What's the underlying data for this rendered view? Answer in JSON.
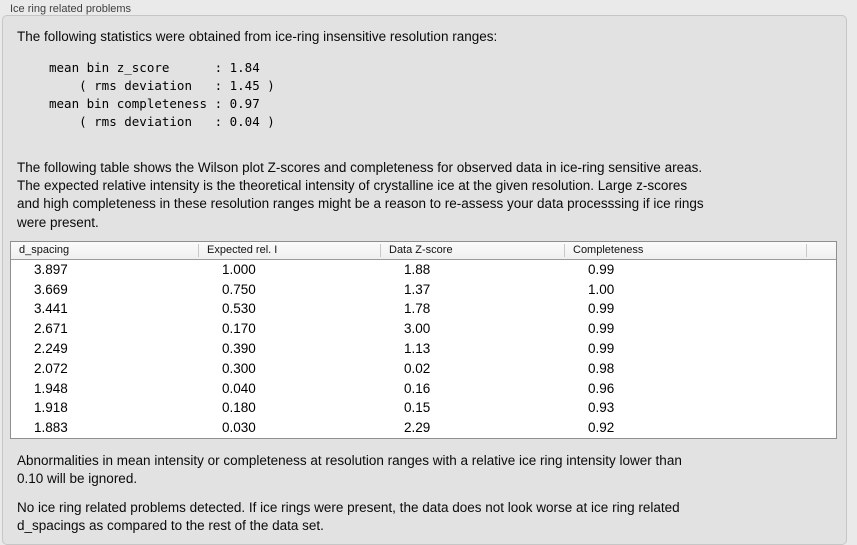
{
  "panel": {
    "title": "Ice ring related problems",
    "intro": "The following statistics were obtained from ice-ring insensitive resolution ranges:",
    "stats_block": "mean bin z_score      : 1.84\n    ( rms deviation   : 1.45 )\nmean bin completeness : 0.97\n    ( rms deviation   : 0.04 )",
    "stats": {
      "mean_bin_z_score": "1.84",
      "z_score_rms_deviation": "1.45",
      "mean_bin_completeness": "0.97",
      "completeness_rms_deviation": "0.04"
    },
    "description": "The following table shows the Wilson plot Z-scores and completeness for observed data in ice-ring sensitive areas.\nThe expected relative intensity is the theoretical intensity of crystalline ice at the given resolution. Large z-scores\nand high completeness in these resolution ranges might be a reason to re-assess your data processsing if ice rings\nwere present.",
    "ignore_note": "Abnormalities in mean intensity or completeness at resolution ranges with a relative ice ring intensity lower than\n0.10 will be ignored.",
    "conclusion": "No ice ring related problems detected. If ice rings were present, the data does not look worse at ice ring related\nd_spacings as compared to the rest of the data set."
  },
  "table": {
    "columns": [
      "d_spacing",
      "Expected rel. I",
      "Data Z-score",
      "Completeness"
    ],
    "rows": [
      [
        "3.897",
        "1.000",
        "1.88",
        "0.99"
      ],
      [
        "3.669",
        "0.750",
        "1.37",
        "1.00"
      ],
      [
        "3.441",
        "0.530",
        "1.78",
        "0.99"
      ],
      [
        "2.671",
        "0.170",
        "3.00",
        "0.99"
      ],
      [
        "2.249",
        "0.390",
        "1.13",
        "0.99"
      ],
      [
        "2.072",
        "0.300",
        "0.02",
        "0.98"
      ],
      [
        "1.948",
        "0.040",
        "0.16",
        "0.96"
      ],
      [
        "1.918",
        "0.180",
        "0.15",
        "0.93"
      ],
      [
        "1.883",
        "0.030",
        "2.29",
        "0.92"
      ]
    ]
  },
  "colors": {
    "outer_background": "#eaeaea",
    "panel_background": "#e2e2e2",
    "panel_border": "#c6c6c6",
    "table_border": "#8f8f8f",
    "table_row_background": "#ffffff"
  }
}
